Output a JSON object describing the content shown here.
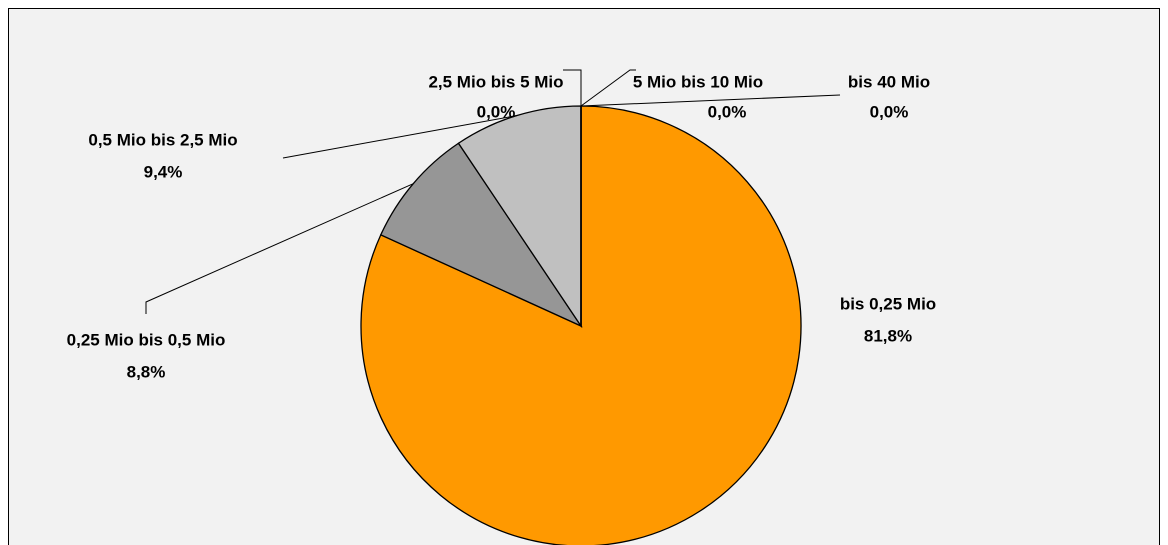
{
  "chart_data": {
    "type": "pie",
    "categories": [
      "bis 0,25 Mio",
      "0,25 Mio bis 0,5 Mio",
      "0,5 Mio bis 2,5 Mio",
      "2,5 Mio bis 5 Mio",
      "5 Mio bis 10 Mio",
      "bis 40 Mio"
    ],
    "values": [
      81.8,
      8.8,
      9.4,
      0.0,
      0.0,
      0.0
    ],
    "value_labels": [
      "81,8%",
      "8,8%",
      "9,4%",
      "0,0%",
      "0,0%",
      "0,0%"
    ],
    "colors": [
      "#ff9900",
      "#969696",
      "#c0c0c0",
      "#ffffff",
      "#ffffff",
      "#ffffff"
    ]
  }
}
